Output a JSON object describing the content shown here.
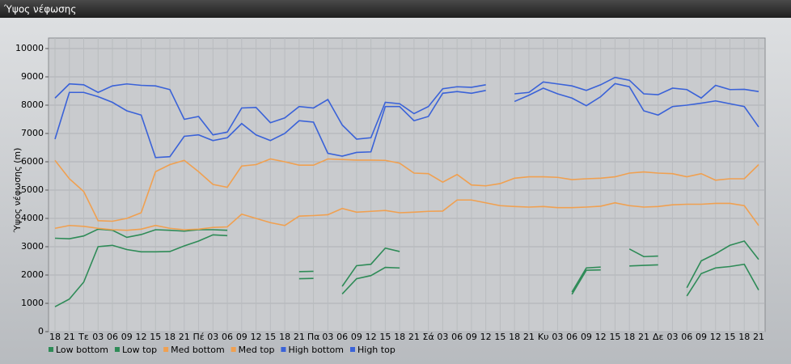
{
  "chart_data": {
    "type": "line",
    "title": "Ύψος νέφωσης",
    "y_label": "Ύψος νέφωσης (m)",
    "categories": [
      "18",
      "21",
      "Τε",
      "03",
      "06",
      "09",
      "12",
      "15",
      "18",
      "21",
      "Πέ",
      "03",
      "06",
      "09",
      "12",
      "15",
      "18",
      "21",
      "Πα",
      "03",
      "06",
      "09",
      "12",
      "15",
      "18",
      "21",
      "Σά",
      "03",
      "06",
      "09",
      "12",
      "15",
      "18",
      "21",
      "Κυ",
      "03",
      "06",
      "09",
      "12",
      "15",
      "18",
      "21",
      "Δε",
      "03",
      "06",
      "09",
      "12",
      "15",
      "18",
      "21"
    ],
    "ylim": [
      0,
      10000
    ],
    "yticks": [
      0,
      1000,
      2000,
      3000,
      4000,
      5000,
      6000,
      7000,
      8000,
      9000,
      10000
    ],
    "grid": true,
    "legend": "bottom",
    "series": [
      {
        "name": "Low bottom",
        "color": "#2e8b57",
        "values": [
          880,
          1150,
          1750,
          3000,
          3050,
          2900,
          2820,
          2820,
          2830,
          3030,
          3200,
          3420,
          3390,
          null,
          null,
          null,
          null,
          1870,
          1880,
          null,
          1330,
          1870,
          1980,
          2270,
          2250,
          null,
          null,
          null,
          null,
          null,
          null,
          null,
          null,
          null,
          null,
          null,
          1320,
          2170,
          2180,
          null,
          2320,
          2340,
          2360,
          null,
          1260,
          2050,
          2250,
          2300,
          2380,
          1470
        ]
      },
      {
        "name": "Low top",
        "color": "#2e8b57",
        "values": [
          3300,
          3280,
          3380,
          3620,
          3580,
          3330,
          3430,
          3600,
          3580,
          3550,
          3600,
          3600,
          3580,
          null,
          null,
          null,
          null,
          2120,
          2130,
          null,
          1600,
          2330,
          2380,
          2950,
          2830,
          null,
          null,
          null,
          null,
          null,
          null,
          null,
          null,
          null,
          null,
          null,
          1400,
          2250,
          2280,
          null,
          2920,
          2650,
          2670,
          null,
          1550,
          2500,
          2750,
          3050,
          3200,
          2550
        ]
      },
      {
        "name": "Med bottom",
        "color": "#f0a050",
        "values": [
          3650,
          3750,
          3720,
          3650,
          3600,
          3580,
          3620,
          3750,
          3650,
          3600,
          3620,
          3680,
          3700,
          4150,
          4000,
          3850,
          3750,
          4080,
          4100,
          4130,
          4350,
          4220,
          4250,
          4280,
          4200,
          4220,
          4250,
          4260,
          4650,
          4650,
          4550,
          4450,
          4420,
          4400,
          4420,
          4380,
          4380,
          4400,
          4430,
          4550,
          4450,
          4400,
          4420,
          4480,
          4500,
          4500,
          4530,
          4530,
          4450,
          3750
        ]
      },
      {
        "name": "Med top",
        "color": "#f0a050",
        "values": [
          6050,
          5400,
          4950,
          3920,
          3900,
          4000,
          4200,
          5650,
          5900,
          6050,
          5650,
          5200,
          5100,
          5850,
          5900,
          6100,
          6000,
          5880,
          5880,
          6100,
          6080,
          6060,
          6060,
          6050,
          5950,
          5600,
          5580,
          5280,
          5550,
          5180,
          5150,
          5230,
          5420,
          5470,
          5470,
          5450,
          5370,
          5400,
          5420,
          5470,
          5600,
          5640,
          5600,
          5580,
          5470,
          5580,
          5350,
          5400,
          5400,
          5900
        ]
      },
      {
        "name": "High bottom",
        "color": "#3a62d8",
        "values": [
          6800,
          8450,
          8450,
          8300,
          8100,
          7800,
          7650,
          6150,
          6180,
          6900,
          6950,
          6750,
          6850,
          7350,
          6950,
          6750,
          7000,
          7450,
          7400,
          6300,
          6200,
          6330,
          6350,
          7950,
          7950,
          7450,
          7600,
          8420,
          8480,
          8420,
          8520,
          null,
          8130,
          8350,
          8600,
          8400,
          8250,
          7980,
          8300,
          8760,
          8650,
          7800,
          7650,
          7950,
          8000,
          8070,
          8150,
          8050,
          7950,
          7230
        ]
      },
      {
        "name": "High top",
        "color": "#3a62d8",
        "values": [
          8250,
          8750,
          8720,
          8450,
          8680,
          8750,
          8700,
          8680,
          8550,
          7500,
          7600,
          6950,
          7050,
          7900,
          7920,
          7380,
          7550,
          7950,
          7900,
          8200,
          7300,
          6800,
          6850,
          8100,
          8050,
          7700,
          7950,
          8580,
          8650,
          8630,
          8720,
          null,
          8400,
          8450,
          8820,
          8750,
          8680,
          8520,
          8720,
          8980,
          8880,
          8400,
          8370,
          8600,
          8550,
          8250,
          8700,
          8550,
          8560,
          8480
        ]
      }
    ]
  }
}
